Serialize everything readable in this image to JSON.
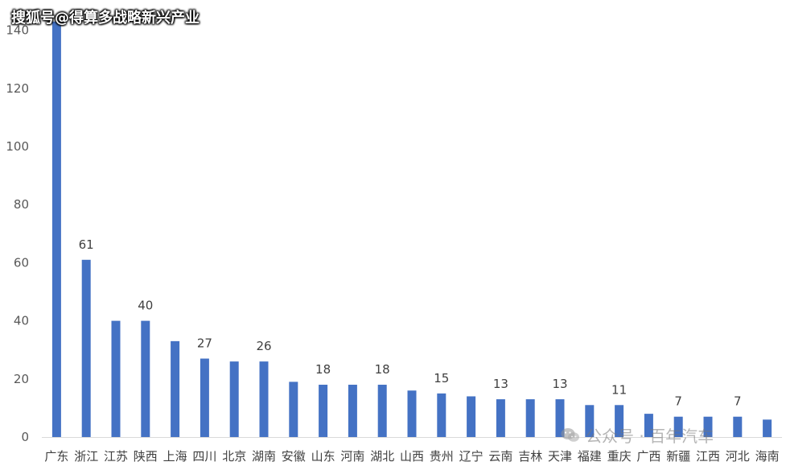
{
  "watermarks": {
    "top": "搜狐号@得算多战略新兴产业",
    "bottom": "公众号 · 百年汽车",
    "bottom_icon": "wechat-icon"
  },
  "colors": {
    "bar": "#4472C4",
    "axis": "#D9D9D9"
  },
  "chart_data": {
    "type": "bar",
    "categories": [
      "广东",
      "浙江",
      "江苏",
      "陕西",
      "上海",
      "四川",
      "北京",
      "湖南",
      "安徽",
      "山东",
      "河南",
      "湖北",
      "山西",
      "贵州",
      "辽宁",
      "云南",
      "吉林",
      "天津",
      "福建",
      "重庆",
      "广西",
      "新疆",
      "江西",
      "河北",
      "海南"
    ],
    "values": [
      143,
      61,
      40,
      40,
      33,
      27,
      26,
      26,
      19,
      18,
      18,
      18,
      16,
      15,
      14,
      13,
      13,
      13,
      11,
      11,
      8,
      7,
      7,
      7,
      6
    ],
    "data_labels": {
      "1": "61",
      "3": "40",
      "5": "27",
      "7": "26",
      "9": "18",
      "11": "18",
      "13": "15",
      "15": "13",
      "17": "13",
      "19": "11",
      "21": "7",
      "23": "7"
    },
    "yticks": [
      "0",
      "20",
      "40",
      "60",
      "80",
      "100",
      "120",
      "140"
    ],
    "ylim": [
      0,
      143
    ],
    "grid": false,
    "legend": "none",
    "title": "",
    "xlabel": "",
    "ylabel": ""
  }
}
